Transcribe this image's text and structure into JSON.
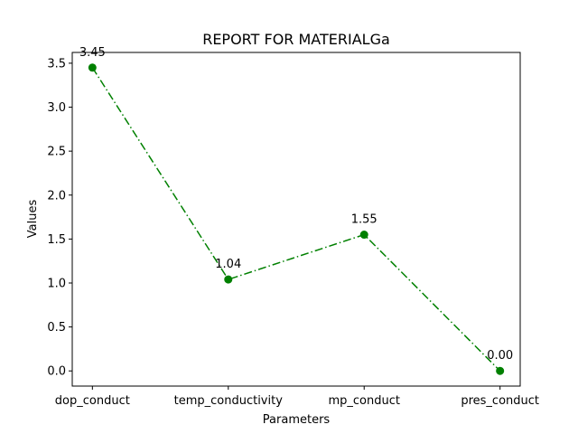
{
  "chart_data": {
    "type": "line",
    "title": "REPORT FOR MATERIALGa",
    "xlabel": "Parameters",
    "ylabel": "Values",
    "categories": [
      "dop_conduct",
      "temp_conductivity",
      "mp_conduct",
      "pres_conduct"
    ],
    "series": [
      {
        "values": [
          3.45,
          1.04,
          1.55,
          0.0
        ],
        "labels": [
          "3.45",
          "1.04",
          "1.55",
          "0.00"
        ],
        "color": "#008000",
        "line_style": "dash-dot",
        "marker": "circle"
      }
    ],
    "ylim": [
      -0.1725,
      3.6225
    ],
    "yticks": [
      0.0,
      0.5,
      1.0,
      1.5,
      2.0,
      2.5,
      3.0,
      3.5
    ],
    "ytick_labels": [
      "0.0",
      "0.5",
      "1.0",
      "1.5",
      "2.0",
      "2.5",
      "3.0",
      "3.5"
    ],
    "grid": false,
    "legend": "none"
  }
}
